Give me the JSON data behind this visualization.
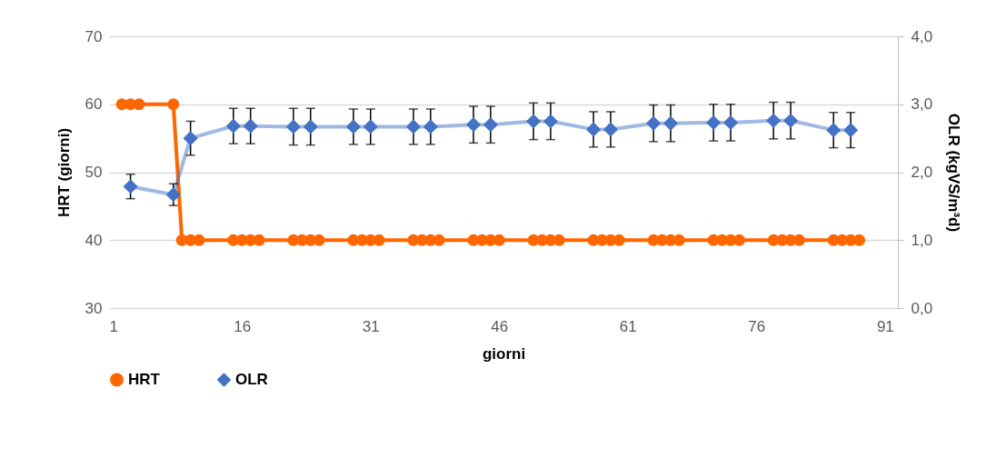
{
  "chart_data": {
    "type": "line",
    "xlabel": "giorni",
    "ylabel": "HRT (giorni)",
    "y2label": "OLR (kgVS/m³d)",
    "xlim": [
      0.5,
      92.5
    ],
    "xticks": [
      1,
      16,
      31,
      46,
      61,
      76,
      91
    ],
    "ylim": [
      30,
      70
    ],
    "yticks": [
      30,
      40,
      50,
      60,
      70
    ],
    "y2lim": [
      0,
      4
    ],
    "y2ticks": [
      {
        "value": 0,
        "label": "0,0"
      },
      {
        "value": 1,
        "label": "1,0"
      },
      {
        "value": 2,
        "label": "2,0"
      },
      {
        "value": 3,
        "label": "3,0"
      },
      {
        "value": 4,
        "label": "4,0"
      }
    ],
    "grid": "y",
    "legend": "bottom",
    "series": [
      {
        "name": "HRT",
        "color": "#ff6600",
        "marker": "circle",
        "x": [
          2,
          3,
          4,
          8,
          9,
          10,
          11,
          15,
          16,
          17,
          18,
          22,
          23,
          24,
          25,
          29,
          30,
          31,
          32,
          36,
          37,
          38,
          39,
          43,
          44,
          45,
          46,
          50,
          51,
          52,
          53,
          57,
          58,
          59,
          60,
          64,
          65,
          66,
          67,
          71,
          72,
          73,
          74,
          78,
          79,
          80,
          81,
          85,
          86,
          87,
          88
        ],
        "values": [
          60,
          60,
          60,
          60,
          40,
          40,
          40,
          40,
          40,
          40,
          40,
          40,
          40,
          40,
          40,
          40,
          40,
          40,
          40,
          40,
          40,
          40,
          40,
          40,
          40,
          40,
          40,
          40,
          40,
          40,
          40,
          40,
          40,
          40,
          40,
          40,
          40,
          40,
          40,
          40,
          40,
          40,
          40,
          40,
          40,
          40,
          40,
          40,
          40,
          40,
          40
        ]
      },
      {
        "name": "OLR",
        "axis": "y2",
        "color": "#4472c4",
        "marker": "diamond",
        "x": [
          3,
          8,
          10,
          15,
          17,
          22,
          24,
          29,
          31,
          36,
          38,
          43,
          45,
          50,
          52,
          57,
          59,
          64,
          66,
          71,
          73,
          78,
          80,
          85,
          87
        ],
        "values": [
          1.79,
          1.67,
          2.5,
          2.68,
          2.68,
          2.67,
          2.67,
          2.67,
          2.67,
          2.67,
          2.67,
          2.7,
          2.7,
          2.75,
          2.75,
          2.63,
          2.63,
          2.72,
          2.72,
          2.73,
          2.73,
          2.76,
          2.76,
          2.62,
          2.62
        ],
        "errors": [
          0.18,
          0.16,
          0.25,
          0.26,
          0.26,
          0.27,
          0.27,
          0.26,
          0.26,
          0.26,
          0.26,
          0.27,
          0.27,
          0.27,
          0.27,
          0.26,
          0.26,
          0.27,
          0.27,
          0.27,
          0.27,
          0.27,
          0.27,
          0.26,
          0.26
        ]
      }
    ]
  }
}
